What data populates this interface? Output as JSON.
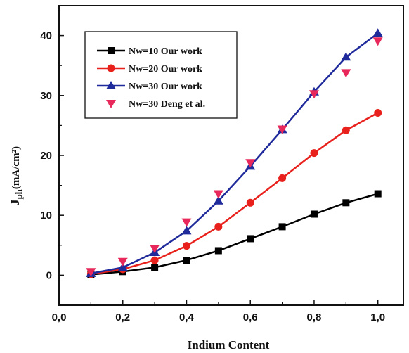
{
  "chart_data": {
    "type": "line",
    "title": "",
    "xlabel": "Indium Content",
    "ylabel_main": "J",
    "ylabel_sub": "ph",
    "ylabel_unit": "(mA/cm²)",
    "xlim": [
      0.0,
      1.08
    ],
    "ylim": [
      -5,
      45
    ],
    "x_ticks": [
      0.0,
      0.2,
      0.4,
      0.6,
      0.8,
      1.0
    ],
    "x_tick_labels": [
      "0,0",
      "0,2",
      "0,4",
      "0,6",
      "0,8",
      "1,0"
    ],
    "y_ticks": [
      0,
      10,
      20,
      30,
      40
    ],
    "y_tick_labels": [
      "0",
      "10",
      "20",
      "30",
      "40"
    ],
    "grid": false,
    "legend_position": "top-left",
    "series": [
      {
        "name": "Nw=10  Our work",
        "color": "#000000",
        "marker": "square",
        "line": true,
        "x": [
          0.1,
          0.2,
          0.3,
          0.4,
          0.5,
          0.6,
          0.7,
          0.8,
          0.9,
          1.0
        ],
        "y": [
          0.1,
          0.6,
          1.3,
          2.5,
          4.1,
          6.1,
          8.1,
          10.2,
          12.1,
          13.6
        ]
      },
      {
        "name": "Nw=20  Our work",
        "color": "#e8211c",
        "marker": "circle",
        "line": true,
        "x": [
          0.1,
          0.2,
          0.3,
          0.4,
          0.5,
          0.6,
          0.7,
          0.8,
          0.9,
          1.0
        ],
        "y": [
          0.2,
          1.0,
          2.5,
          4.9,
          8.1,
          12.1,
          16.2,
          20.4,
          24.2,
          27.1
        ]
      },
      {
        "name": "Nw=30  Our work",
        "color": "#1f2a9b",
        "marker": "triangle-up",
        "line": true,
        "x": [
          0.1,
          0.2,
          0.3,
          0.4,
          0.5,
          0.6,
          0.7,
          0.8,
          0.9,
          1.0
        ],
        "y": [
          0.3,
          1.3,
          3.8,
          7.4,
          12.4,
          18.2,
          24.3,
          30.6,
          36.4,
          40.4
        ]
      },
      {
        "name": "Nw=30   Deng et al.",
        "color": "#e8285a",
        "marker": "triangle-down",
        "line": false,
        "x": [
          0.1,
          0.2,
          0.3,
          0.4,
          0.5,
          0.6,
          0.7,
          0.8,
          0.9,
          1.0
        ],
        "y": [
          0.6,
          2.3,
          4.5,
          8.9,
          13.6,
          18.8,
          24.4,
          30.3,
          33.8,
          39.1
        ]
      }
    ]
  }
}
